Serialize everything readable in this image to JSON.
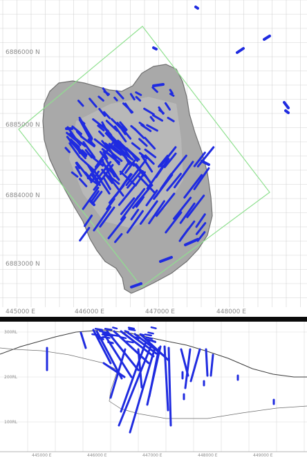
{
  "plan_view": {
    "northing_labels": [
      "6886000 N",
      "6885000 N",
      "6884000 N",
      "6883000 N"
    ],
    "easting_labels": [
      "445000 E",
      "446000 E",
      "447000 E",
      "448000 E"
    ],
    "colors": {
      "background": "#ffffff",
      "grid": "#d4d4d4",
      "orebody_fill": "#a9a9a9",
      "orebody_edge": "#6f6f6f",
      "boundary": "#8fe08f",
      "drillhole": "#1f2be0"
    }
  },
  "section_view": {
    "rl_labels": [
      "300RL",
      "200RL",
      "100RL"
    ],
    "easting_labels": [
      "445000 E",
      "446000 E",
      "447000 E",
      "448000 E",
      "449000 E"
    ],
    "colors": {
      "background": "#ffffff",
      "grid": "#d9d9d9",
      "surface_line": "#3a3a3a",
      "drillhole": "#1f2be0"
    }
  },
  "divider_color": "#0a0a0a"
}
